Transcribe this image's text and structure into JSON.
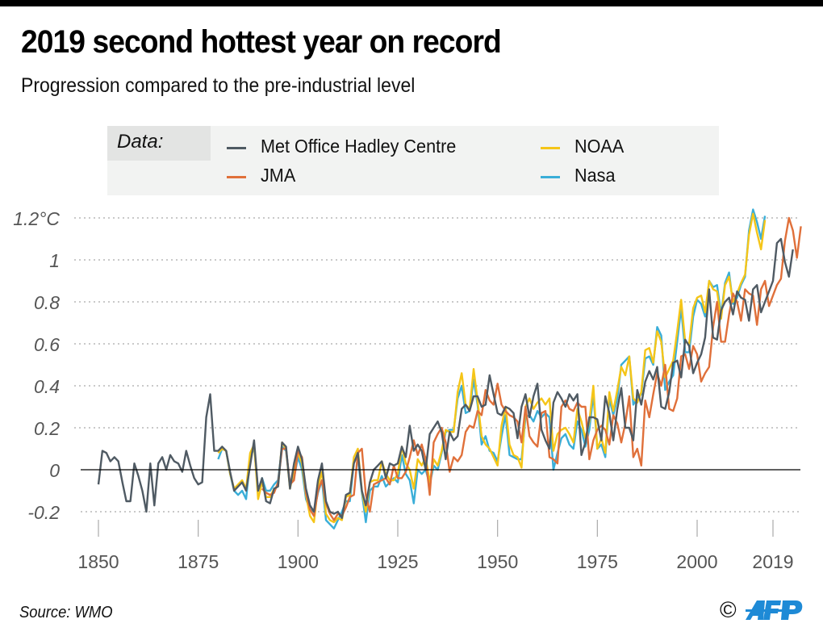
{
  "header": {
    "title": "2019 second hottest year on record",
    "subtitle": "Progression compared to the pre-industrial level"
  },
  "legend": {
    "label": "Data:",
    "items": [
      {
        "name": "Met Office Hadley Centre",
        "color": "#4f5a63"
      },
      {
        "name": "JMA",
        "color": "#e0703a"
      },
      {
        "name": "NOAA",
        "color": "#f5c518"
      },
      {
        "name": "Nasa",
        "color": "#3aaed8"
      }
    ]
  },
  "footer": {
    "source": "Source: WMO",
    "copyright": "©",
    "logo": "AFP",
    "logo_color": "#1e8ad6"
  },
  "chart_data": {
    "type": "line",
    "title": "2019 second hottest year on record",
    "subtitle": "Progression compared to the pre-industrial level",
    "xlabel": "",
    "ylabel": "°C",
    "xlim": [
      1846,
      2025
    ],
    "ylim": [
      -0.25,
      1.25
    ],
    "x_ticks": [
      1850,
      1875,
      1900,
      1925,
      1950,
      1975,
      2000,
      2019
    ],
    "x_tick_labels": [
      "1850",
      "1875",
      "1900",
      "1925",
      "1950",
      "1975",
      "2000",
      "2019"
    ],
    "y_ticks": [
      -0.2,
      0,
      0.2,
      0.4,
      0.6,
      0.8,
      1,
      1.2
    ],
    "y_tick_labels": [
      "-0.2",
      "0",
      "0.2",
      "0.4",
      "0.6",
      "0.8",
      "1",
      "1.2°C"
    ],
    "grid": "horizontal-dotted",
    "legend_position": "top",
    "series": [
      {
        "name": "Met Office Hadley Centre",
        "color": "#4f5a63",
        "start": 1850,
        "values": [
          -0.07,
          0.09,
          0.08,
          0.04,
          0.06,
          0.04,
          -0.06,
          -0.15,
          -0.15,
          0.03,
          -0.03,
          -0.1,
          -0.2,
          0.03,
          -0.17,
          0.03,
          0.06,
          0.0,
          0.07,
          0.04,
          0.03,
          -0.01,
          0.09,
          0.02,
          -0.04,
          -0.07,
          -0.06,
          0.25,
          0.36,
          0.09,
          0.09,
          0.11,
          0.09,
          -0.01,
          -0.1,
          -0.08,
          -0.06,
          -0.1,
          0.02,
          0.14,
          -0.1,
          -0.04,
          -0.15,
          -0.16,
          -0.09,
          -0.08,
          0.13,
          0.11,
          -0.09,
          0.03,
          0.11,
          0.05,
          -0.09,
          -0.17,
          -0.2,
          -0.05,
          0.03,
          -0.15,
          -0.2,
          -0.21,
          -0.2,
          -0.23,
          -0.12,
          -0.11,
          0.03,
          0.08,
          -0.1,
          -0.17,
          -0.06,
          0.0,
          0.02,
          0.04,
          -0.04,
          0.03,
          0.02,
          0.03,
          0.11,
          0.06,
          0.21,
          0.09,
          0.12,
          0.09,
          0.0,
          0.17,
          0.2,
          0.23,
          0.18,
          0.05,
          0.18,
          0.14,
          0.16,
          0.29,
          0.31,
          0.28,
          0.35,
          0.35,
          0.3,
          0.31,
          0.45,
          0.36,
          0.27,
          0.26,
          0.3,
          0.29,
          0.27,
          0.15,
          0.3,
          0.36,
          0.25,
          0.35,
          0.41,
          0.19,
          0.14,
          0.1,
          0.32,
          0.37,
          0.34,
          0.3,
          0.36,
          0.33,
          0.36,
          0.07,
          0.13,
          0.25,
          0.25,
          0.24,
          0.14,
          0.35,
          0.27,
          0.14,
          0.29,
          0.39,
          0.2,
          0.2,
          0.14,
          0.38,
          0.31,
          0.42,
          0.47,
          0.43,
          0.49,
          0.3,
          0.29,
          0.37,
          0.51,
          0.52,
          0.44,
          0.62,
          0.59,
          0.46,
          0.51,
          0.55,
          0.63,
          0.86,
          0.63,
          0.62,
          0.76,
          0.8,
          0.82,
          0.74,
          0.85,
          0.82,
          0.81,
          0.71,
          0.86,
          0.88,
          0.75,
          0.8,
          0.85,
          0.9,
          1.08,
          1.1,
          0.99,
          0.92,
          1.05
        ]
      },
      {
        "name": "JMA",
        "color": "#e0703a",
        "start": 1891,
        "values": [
          -0.09,
          -0.11,
          -0.12,
          -0.11,
          -0.06,
          0.1,
          0.1,
          -0.07,
          -0.05,
          0.09,
          0.06,
          -0.11,
          -0.19,
          -0.22,
          -0.1,
          -0.05,
          -0.16,
          -0.21,
          -0.24,
          -0.21,
          -0.22,
          -0.18,
          -0.13,
          -0.12,
          0.08,
          0.1,
          -0.12,
          -0.2,
          -0.07,
          -0.06,
          -0.05,
          -0.04,
          -0.07,
          0.02,
          -0.04,
          -0.04,
          -0.01,
          0.06,
          0.14,
          0.07,
          0.12,
          0.05,
          -0.12,
          0.13,
          0.17,
          0.2,
          0.13,
          -0.01,
          0.06,
          0.04,
          0.07,
          0.18,
          0.21,
          0.2,
          0.28,
          0.26,
          0.38,
          0.33,
          0.31,
          0.41,
          0.31,
          0.28,
          0.26,
          0.25,
          0.23,
          0.13,
          0.3,
          0.16,
          0.13,
          0.11,
          0.27,
          0.28,
          0.06,
          0.05,
          0.03,
          0.3,
          0.33,
          0.29,
          0.28,
          0.32,
          0.3,
          0.3,
          0.05,
          0.14,
          0.19,
          0.21,
          0.19,
          0.12,
          0.26,
          0.22,
          0.13,
          0.22,
          0.35,
          0.06,
          0.1,
          0.02,
          0.33,
          0.25,
          0.36,
          0.46,
          0.4,
          0.5,
          0.29,
          0.28,
          0.34,
          0.54,
          0.55,
          0.48,
          0.59,
          0.55,
          0.42,
          0.46,
          0.49,
          0.68,
          0.8,
          0.61,
          0.61,
          0.74,
          0.84,
          0.8,
          0.71,
          0.86,
          0.84,
          0.83,
          0.69,
          0.86,
          0.9,
          0.78,
          0.83,
          0.88,
          0.91,
          1.09,
          1.2,
          1.14,
          1.01,
          1.16
        ]
      },
      {
        "name": "NOAA",
        "color": "#f5c518",
        "start": 1880,
        "values": [
          0.08,
          0.1,
          0.09,
          -0.02,
          -0.09,
          -0.07,
          -0.05,
          -0.09,
          0.08,
          0.12,
          -0.14,
          -0.06,
          -0.13,
          -0.13,
          -0.09,
          -0.08,
          0.13,
          0.1,
          -0.09,
          0.0,
          0.08,
          0.03,
          -0.12,
          -0.22,
          -0.25,
          -0.08,
          -0.01,
          -0.21,
          -0.24,
          -0.25,
          -0.23,
          -0.24,
          -0.13,
          -0.12,
          0.06,
          0.1,
          -0.1,
          -0.2,
          -0.06,
          -0.05,
          -0.05,
          0.04,
          -0.02,
          -0.05,
          -0.05,
          -0.02,
          0.11,
          0.03,
          0.0,
          -0.09,
          0.05,
          0.02,
          0.06,
          -0.06,
          0.05,
          0.02,
          0.09,
          0.19,
          0.18,
          0.18,
          0.37,
          0.46,
          0.31,
          0.29,
          0.48,
          0.33,
          0.16,
          0.12,
          0.1,
          0.06,
          0.02,
          0.21,
          0.3,
          0.12,
          0.07,
          0.06,
          0.01,
          0.3,
          0.34,
          0.29,
          0.32,
          0.34,
          0.31,
          0.34,
          0.09,
          0.17,
          0.19,
          0.2,
          0.17,
          0.13,
          0.29,
          0.23,
          0.15,
          0.23,
          0.4,
          0.1,
          0.15,
          0.08,
          0.37,
          0.28,
          0.38,
          0.49,
          0.45,
          0.54,
          0.34,
          0.32,
          0.37,
          0.57,
          0.58,
          0.51,
          0.66,
          0.61,
          0.44,
          0.48,
          0.52,
          0.66,
          0.81,
          0.61,
          0.6,
          0.77,
          0.82,
          0.83,
          0.75,
          0.9,
          0.86,
          0.85,
          0.72,
          0.88,
          0.92,
          0.8,
          0.84,
          0.89,
          0.93,
          1.12,
          1.22,
          1.13,
          1.05,
          1.19
        ]
      },
      {
        "name": "Nasa",
        "color": "#3aaed8",
        "start": 1880,
        "values": [
          0.05,
          0.1,
          0.09,
          -0.02,
          -0.1,
          -0.12,
          -0.1,
          -0.14,
          0.05,
          0.11,
          -0.1,
          -0.04,
          -0.1,
          -0.1,
          -0.07,
          -0.05,
          0.11,
          0.09,
          -0.07,
          -0.04,
          0.06,
          0.0,
          -0.14,
          -0.19,
          -0.2,
          -0.11,
          -0.05,
          -0.24,
          -0.26,
          -0.28,
          -0.24,
          -0.2,
          -0.15,
          -0.15,
          0.04,
          0.06,
          -0.11,
          -0.25,
          -0.1,
          -0.08,
          -0.08,
          -0.03,
          -0.08,
          -0.06,
          -0.04,
          -0.06,
          0.07,
          -0.02,
          -0.05,
          -0.16,
          0.0,
          -0.02,
          0.0,
          -0.07,
          0.02,
          0.0,
          0.08,
          0.18,
          0.19,
          0.19,
          0.34,
          0.4,
          0.27,
          0.28,
          0.43,
          0.31,
          0.12,
          0.16,
          0.09,
          0.08,
          0.04,
          0.16,
          0.26,
          0.07,
          0.06,
          0.05,
          0.05,
          0.25,
          0.26,
          0.23,
          0.28,
          0.25,
          0.27,
          0.25,
          0.0,
          0.08,
          0.15,
          0.17,
          0.12,
          0.1,
          0.23,
          0.19,
          0.11,
          0.19,
          0.36,
          0.1,
          0.12,
          0.06,
          0.34,
          0.26,
          0.34,
          0.5,
          0.52,
          0.54,
          0.31,
          0.34,
          0.36,
          0.53,
          0.54,
          0.5,
          0.68,
          0.64,
          0.38,
          0.42,
          0.45,
          0.61,
          0.77,
          0.56,
          0.56,
          0.73,
          0.81,
          0.79,
          0.73,
          0.9,
          0.87,
          0.88,
          0.74,
          0.89,
          0.94,
          0.79,
          0.82,
          0.88,
          0.92,
          1.14,
          1.24,
          1.18,
          1.1,
          1.21
        ]
      }
    ]
  }
}
